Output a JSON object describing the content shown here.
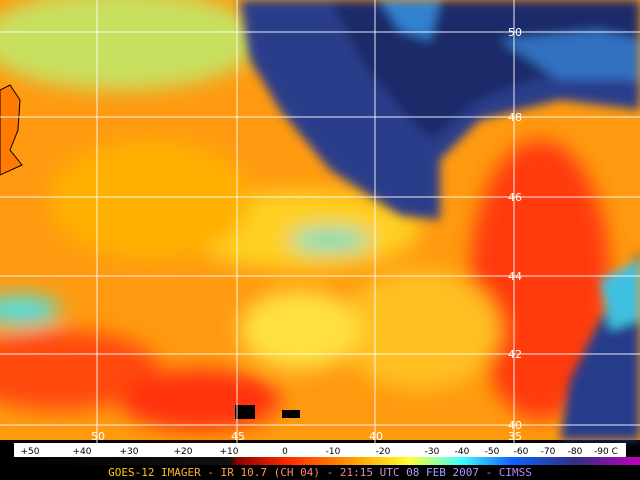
{
  "map": {
    "latitude_labels": [
      "50",
      "48",
      "46",
      "44",
      "42",
      "40"
    ],
    "longitude_labels": [
      "50",
      "45",
      "40",
      "35"
    ]
  },
  "color_scale": {
    "labels": [
      "+50",
      "+40",
      "+30",
      "+20",
      "+10",
      "0",
      "-10",
      "-20",
      "-30",
      "-40",
      "-50",
      "-60",
      "-70",
      "-80",
      "-90 C"
    ]
  },
  "caption": "GOES-12 IMAGER - IR 10.7 (CH 04) - 21:15 UTC 08 FEB 2007 - CIMSS"
}
